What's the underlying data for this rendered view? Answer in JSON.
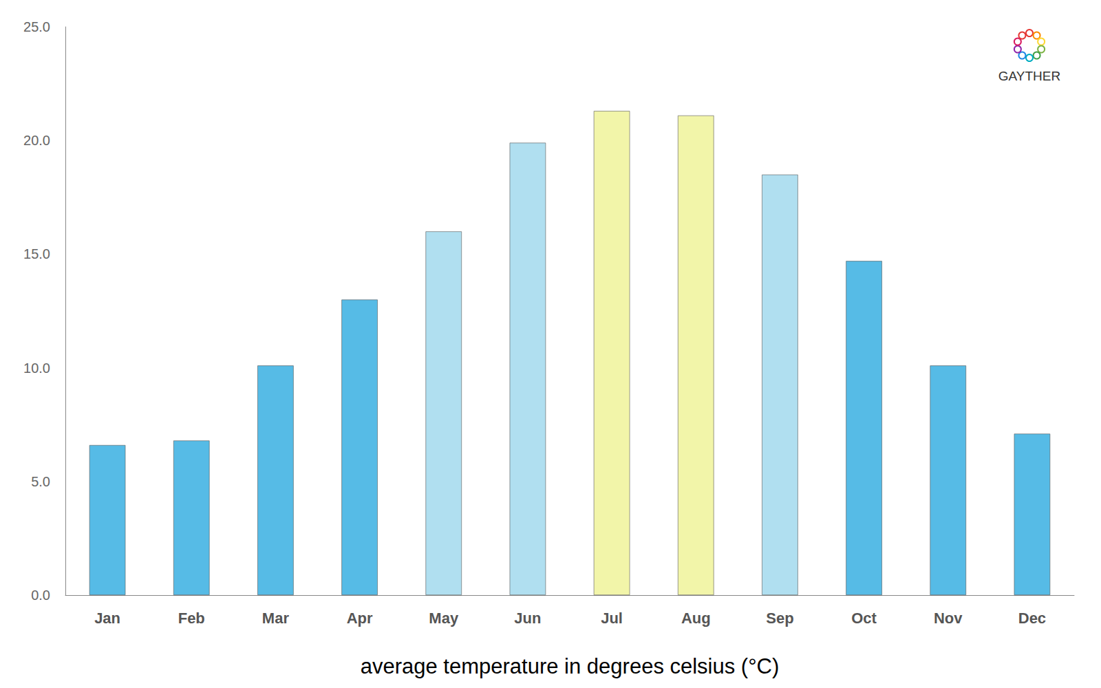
{
  "chart_data": {
    "type": "bar",
    "categories": [
      "Jan",
      "Feb",
      "Mar",
      "Apr",
      "May",
      "Jun",
      "Jul",
      "Aug",
      "Sep",
      "Oct",
      "Nov",
      "Dec"
    ],
    "values": [
      6.6,
      6.8,
      10.1,
      13.0,
      16.0,
      19.9,
      21.3,
      21.1,
      18.5,
      14.7,
      10.1,
      7.1
    ],
    "colors": [
      "#56bbe6",
      "#56bbe6",
      "#56bbe6",
      "#56bbe6",
      "#b0dff0",
      "#b0dff0",
      "#f2f5a9",
      "#f2f5a9",
      "#b0dff0",
      "#56bbe6",
      "#56bbe6",
      "#56bbe6"
    ],
    "xlabel": "average temperature in degrees celsius (°C)",
    "ylim": [
      0,
      25
    ],
    "yticks": [
      {
        "value": 0,
        "label": "0.0"
      },
      {
        "value": 5,
        "label": "5.0"
      },
      {
        "value": 10,
        "label": "10.0"
      },
      {
        "value": 15,
        "label": "15.0"
      },
      {
        "value": 20,
        "label": "20.0"
      },
      {
        "value": 25,
        "label": "25.0"
      }
    ],
    "grid": false,
    "annotations": [
      "GAYTHER"
    ]
  }
}
